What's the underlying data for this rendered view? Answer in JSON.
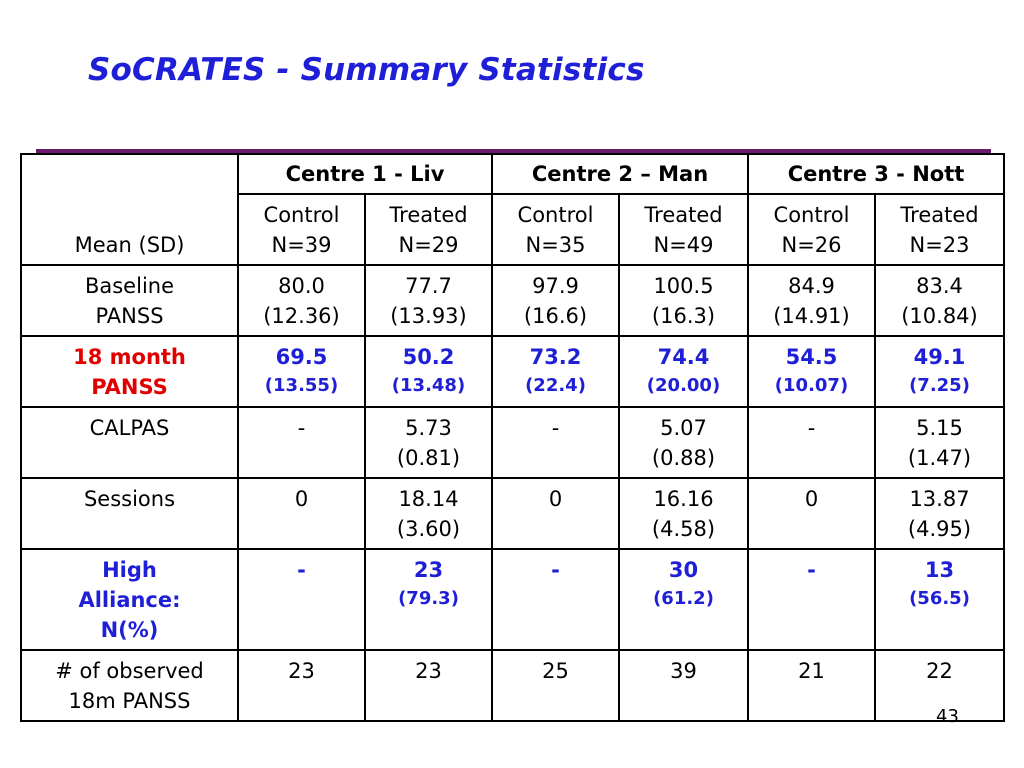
{
  "title": "SoCRATES - Summary Statistics",
  "page_number": "43",
  "colors": {
    "title": "#1f1fd8",
    "highlight_red": "#e10000",
    "highlight_blue": "#1f1fd8",
    "accent_line": "#6a1a6a"
  },
  "table": {
    "row_header_label": "Mean (SD)",
    "centres": [
      "Centre 1 - Liv",
      "Centre 2 – Man",
      "Centre 3 - Nott"
    ],
    "groups": [
      {
        "name": "Control",
        "n": "N=39"
      },
      {
        "name": "Treated",
        "n": "N=29"
      },
      {
        "name": "Control",
        "n": "N=35"
      },
      {
        "name": "Treated",
        "n": "N=49"
      },
      {
        "name": "Control",
        "n": "N=26"
      },
      {
        "name": "Treated",
        "n": "N=23"
      }
    ],
    "rows": [
      {
        "label": [
          "Baseline",
          "PANSS"
        ],
        "cells": [
          [
            "80.0",
            "(12.36)"
          ],
          [
            "77.7",
            "(13.93)"
          ],
          [
            "97.9",
            "(16.6)"
          ],
          [
            "100.5",
            "(16.3)"
          ],
          [
            "84.9",
            "(14.91)"
          ],
          [
            "83.4",
            "(10.84)"
          ]
        ]
      },
      {
        "label": [
          "18 month",
          "PANSS"
        ],
        "cells": [
          [
            "69.5",
            "(13.55)"
          ],
          [
            "50.2",
            "(13.48)"
          ],
          [
            "73.2",
            "(22.4)"
          ],
          [
            "74.4",
            "(20.00)"
          ],
          [
            "54.5",
            "(10.07)"
          ],
          [
            "49.1",
            "(7.25)"
          ]
        ]
      },
      {
        "label": [
          "CALPAS"
        ],
        "cells": [
          [
            "-"
          ],
          [
            "5.73",
            "(0.81)"
          ],
          [
            "-"
          ],
          [
            "5.07",
            "(0.88)"
          ],
          [
            "-"
          ],
          [
            "5.15",
            "(1.47)"
          ]
        ]
      },
      {
        "label": [
          "Sessions"
        ],
        "cells": [
          [
            "0"
          ],
          [
            "18.14",
            "(3.60)"
          ],
          [
            "0"
          ],
          [
            "16.16",
            "(4.58)"
          ],
          [
            "0"
          ],
          [
            "13.87",
            "(4.95)"
          ]
        ]
      },
      {
        "label": [
          "High",
          "Alliance:",
          "N(%)"
        ],
        "cells": [
          [
            "-"
          ],
          [
            "23",
            "(79.3)"
          ],
          [
            "-"
          ],
          [
            "30",
            "(61.2)"
          ],
          [
            "-"
          ],
          [
            "13",
            "(56.5)"
          ]
        ]
      },
      {
        "label": [
          "# of observed",
          "18m PANSS"
        ],
        "cells": [
          [
            "23"
          ],
          [
            "23"
          ],
          [
            "25"
          ],
          [
            "39"
          ],
          [
            "21"
          ],
          [
            "22"
          ]
        ]
      }
    ]
  }
}
